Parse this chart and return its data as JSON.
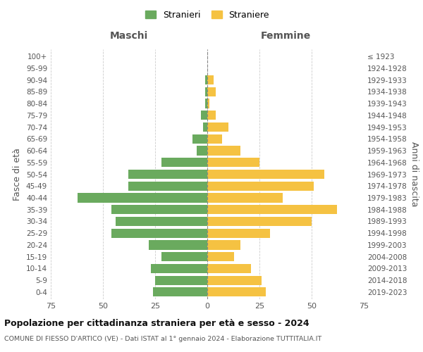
{
  "age_groups": [
    "0-4",
    "5-9",
    "10-14",
    "15-19",
    "20-24",
    "25-29",
    "30-34",
    "35-39",
    "40-44",
    "45-49",
    "50-54",
    "55-59",
    "60-64",
    "65-69",
    "70-74",
    "75-79",
    "80-84",
    "85-89",
    "90-94",
    "95-99",
    "100+"
  ],
  "birth_years": [
    "2019-2023",
    "2014-2018",
    "2009-2013",
    "2004-2008",
    "1999-2003",
    "1994-1998",
    "1989-1993",
    "1984-1988",
    "1979-1983",
    "1974-1978",
    "1969-1973",
    "1964-1968",
    "1959-1963",
    "1954-1958",
    "1949-1953",
    "1944-1948",
    "1939-1943",
    "1934-1938",
    "1929-1933",
    "1924-1928",
    "≤ 1923"
  ],
  "males": [
    26,
    25,
    27,
    22,
    28,
    46,
    44,
    46,
    62,
    38,
    38,
    22,
    5,
    7,
    2,
    3,
    1,
    1,
    1,
    0,
    0
  ],
  "females": [
    28,
    26,
    21,
    13,
    16,
    30,
    50,
    62,
    36,
    51,
    56,
    25,
    16,
    7,
    10,
    4,
    1,
    4,
    3,
    0,
    0
  ],
  "male_color": "#6aaa5e",
  "female_color": "#f5c242",
  "grid_color": "#cccccc",
  "center_line_color": "#888888",
  "title": "Popolazione per cittadinanza straniera per età e sesso - 2024",
  "subtitle": "COMUNE DI FIESSO D'ARTICO (VE) - Dati ISTAT al 1° gennaio 2024 - Elaborazione TUTTITALIA.IT",
  "xlabel_left": "Maschi",
  "xlabel_right": "Femmine",
  "ylabel_left": "Fasce di età",
  "ylabel_right": "Anni di nascita",
  "legend_male": "Stranieri",
  "legend_female": "Straniere",
  "xlim": 75,
  "label_color": "#555555",
  "tick_fontsize": 7.5,
  "axis_label_fontsize": 9,
  "header_fontsize": 9.5,
  "title_fontsize": 9,
  "subtitle_fontsize": 6.8
}
